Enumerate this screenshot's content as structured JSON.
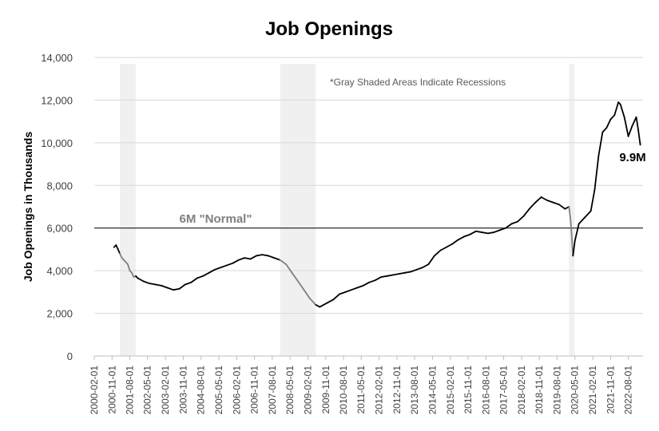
{
  "chart_data": {
    "type": "line",
    "title": "Job Openings",
    "ylabel": "Job Openings in Thousands",
    "xlabel": "",
    "ylim": [
      0,
      14000
    ],
    "y_ticks": [
      "0",
      "2,000",
      "4,000",
      "6,000",
      "8,000",
      "10,000",
      "12,000",
      "14,000"
    ],
    "x_ticks": [
      "2000-02-01",
      "2000-11-01",
      "2001-08-01",
      "2002-05-01",
      "2003-02-01",
      "2003-11-01",
      "2004-08-01",
      "2005-05-01",
      "2006-02-01",
      "2006-11-01",
      "2007-08-01",
      "2008-05-01",
      "2009-02-01",
      "2009-11-01",
      "2010-08-01",
      "2011-05-01",
      "2012-02-01",
      "2012-11-01",
      "2013-08-01",
      "2014-05-01",
      "2015-02-01",
      "2015-11-01",
      "2016-08-01",
      "2017-05-01",
      "2018-02-01",
      "2018-11-01",
      "2019-08-01",
      "2020-05-01",
      "2021-02-01",
      "2021-11-01",
      "2022-08-01"
    ],
    "grid": true,
    "recessions": [
      {
        "start": "2001-03-01",
        "end": "2001-11-01"
      },
      {
        "start": "2007-12-01",
        "end": "2009-06-01"
      },
      {
        "start": "2020-02-01",
        "end": "2020-04-01"
      }
    ],
    "recession_note": "*Gray Shaded Areas Indicate Recessions",
    "reference_line": {
      "value": 6000,
      "label": "6M \"Normal\""
    },
    "last_label": "9.9M",
    "series": [
      {
        "points": [
          [
            "2000-12-01",
            5100
          ],
          [
            "2001-01-01",
            5200
          ],
          [
            "2001-02-01",
            5000
          ],
          [
            "2001-03-01",
            4800
          ],
          [
            "2001-04-01",
            4600
          ],
          [
            "2001-05-01",
            4500
          ],
          [
            "2001-06-01",
            4400
          ],
          [
            "2001-07-01",
            4300
          ],
          [
            "2001-08-01",
            4000
          ],
          [
            "2001-09-01",
            3900
          ],
          [
            "2001-10-01",
            3700
          ],
          [
            "2001-11-01",
            3750
          ],
          [
            "2001-12-01",
            3650
          ],
          [
            "2002-03-01",
            3500
          ],
          [
            "2002-06-01",
            3400
          ],
          [
            "2002-09-01",
            3350
          ],
          [
            "2002-12-01",
            3300
          ],
          [
            "2003-03-01",
            3200
          ],
          [
            "2003-06-01",
            3100
          ],
          [
            "2003-09-01",
            3150
          ],
          [
            "2003-12-01",
            3350
          ],
          [
            "2004-03-01",
            3450
          ],
          [
            "2004-06-01",
            3650
          ],
          [
            "2004-09-01",
            3750
          ],
          [
            "2004-12-01",
            3900
          ],
          [
            "2005-03-01",
            4050
          ],
          [
            "2005-06-01",
            4150
          ],
          [
            "2005-09-01",
            4250
          ],
          [
            "2005-12-01",
            4350
          ],
          [
            "2006-03-01",
            4500
          ],
          [
            "2006-06-01",
            4600
          ],
          [
            "2006-09-01",
            4550
          ],
          [
            "2006-12-01",
            4700
          ],
          [
            "2007-03-01",
            4750
          ],
          [
            "2007-06-01",
            4700
          ],
          [
            "2007-09-01",
            4600
          ],
          [
            "2007-12-01",
            4500
          ],
          [
            "2008-03-01",
            4300
          ],
          [
            "2008-06-01",
            3900
          ],
          [
            "2008-09-01",
            3500
          ],
          [
            "2008-12-01",
            3100
          ],
          [
            "2009-03-01",
            2700
          ],
          [
            "2009-06-01",
            2400
          ],
          [
            "2009-08-01",
            2300
          ],
          [
            "2009-12-01",
            2500
          ],
          [
            "2010-03-01",
            2650
          ],
          [
            "2010-06-01",
            2900
          ],
          [
            "2010-09-01",
            3000
          ],
          [
            "2010-12-01",
            3100
          ],
          [
            "2011-03-01",
            3200
          ],
          [
            "2011-06-01",
            3300
          ],
          [
            "2011-09-01",
            3450
          ],
          [
            "2011-12-01",
            3550
          ],
          [
            "2012-03-01",
            3700
          ],
          [
            "2012-06-01",
            3750
          ],
          [
            "2012-09-01",
            3800
          ],
          [
            "2012-12-01",
            3850
          ],
          [
            "2013-03-01",
            3900
          ],
          [
            "2013-06-01",
            3950
          ],
          [
            "2013-09-01",
            4050
          ],
          [
            "2013-12-01",
            4150
          ],
          [
            "2014-03-01",
            4300
          ],
          [
            "2014-06-01",
            4700
          ],
          [
            "2014-09-01",
            4950
          ],
          [
            "2014-12-01",
            5100
          ],
          [
            "2015-03-01",
            5250
          ],
          [
            "2015-06-01",
            5450
          ],
          [
            "2015-09-01",
            5600
          ],
          [
            "2015-12-01",
            5700
          ],
          [
            "2016-03-01",
            5850
          ],
          [
            "2016-06-01",
            5800
          ],
          [
            "2016-09-01",
            5750
          ],
          [
            "2016-12-01",
            5800
          ],
          [
            "2017-03-01",
            5900
          ],
          [
            "2017-06-01",
            6000
          ],
          [
            "2017-09-01",
            6200
          ],
          [
            "2017-12-01",
            6300
          ],
          [
            "2018-03-01",
            6550
          ],
          [
            "2018-06-01",
            6900
          ],
          [
            "2018-09-01",
            7200
          ],
          [
            "2018-12-01",
            7450
          ],
          [
            "2019-03-01",
            7300
          ],
          [
            "2019-06-01",
            7200
          ],
          [
            "2019-09-01",
            7100
          ],
          [
            "2019-12-01",
            6900
          ],
          [
            "2020-02-01",
            7000
          ],
          [
            "2020-03-01",
            6200
          ],
          [
            "2020-04-01",
            4700
          ],
          [
            "2020-05-01",
            5400
          ],
          [
            "2020-07-01",
            6200
          ],
          [
            "2020-10-01",
            6500
          ],
          [
            "2021-01-01",
            6800
          ],
          [
            "2021-03-01",
            7800
          ],
          [
            "2021-05-01",
            9400
          ],
          [
            "2021-07-01",
            10500
          ],
          [
            "2021-09-01",
            10700
          ],
          [
            "2021-11-01",
            11100
          ],
          [
            "2022-01-01",
            11300
          ],
          [
            "2022-03-01",
            11900
          ],
          [
            "2022-04-01",
            11800
          ],
          [
            "2022-06-01",
            11200
          ],
          [
            "2022-08-01",
            10300
          ],
          [
            "2022-10-01",
            10800
          ],
          [
            "2022-12-01",
            11200
          ],
          [
            "2023-01-01",
            10600
          ],
          [
            "2023-02-01",
            9900
          ]
        ]
      }
    ]
  }
}
